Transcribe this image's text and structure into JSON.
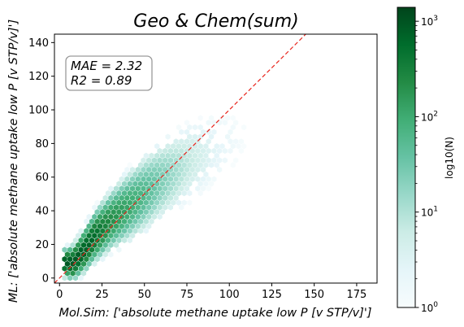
{
  "chart_data": {
    "type": "heatmap",
    "subtype": "hexbin",
    "title": "Geo & Chem(sum)",
    "xlabel": "Mol.Sim: ['absolute methane uptake low P [v STP/v]']",
    "ylabel": "ML: ['absolute methane uptake low P [v STP/v]']",
    "xlim": [
      -3,
      187
    ],
    "ylim": [
      -3,
      145
    ],
    "xticks": [
      0,
      25,
      50,
      75,
      100,
      125,
      150,
      175
    ],
    "yticks": [
      0,
      20,
      40,
      60,
      80,
      100,
      120,
      140
    ],
    "xtick_labels": [
      "0",
      "25",
      "50",
      "75",
      "100",
      "125",
      "150",
      "175"
    ],
    "ytick_labels": [
      "0",
      "20",
      "40",
      "60",
      "80",
      "100",
      "120",
      "140"
    ],
    "stats": [
      "MAE = 2.32",
      "R2 = 0.89"
    ],
    "reference_line": {
      "label": "y = x",
      "color": "#e8251c",
      "style": "dashed"
    },
    "colorbar": {
      "label": "log10(N)",
      "scale": "log",
      "range": [
        1,
        1400
      ],
      "tick_labels": [
        {
          "base": "10",
          "exp": "0",
          "value": 1
        },
        {
          "base": "10",
          "exp": "1",
          "value": 10
        },
        {
          "base": "10",
          "exp": "2",
          "value": 100
        },
        {
          "base": "10",
          "exp": "3",
          "value": 1000
        }
      ],
      "colormap": "BuGn"
    },
    "density_trend": [
      {
        "x": 8,
        "y": 9,
        "count": 900
      },
      {
        "x": 15,
        "y": 17,
        "count": 800
      },
      {
        "x": 20,
        "y": 24,
        "count": 600
      },
      {
        "x": 25,
        "y": 29,
        "count": 350
      },
      {
        "x": 30,
        "y": 34,
        "count": 220
      },
      {
        "x": 40,
        "y": 42,
        "count": 120
      },
      {
        "x": 50,
        "y": 50,
        "count": 60
      },
      {
        "x": 60,
        "y": 58,
        "count": 25
      },
      {
        "x": 75,
        "y": 68,
        "count": 8
      },
      {
        "x": 90,
        "y": 76,
        "count": 3
      },
      {
        "x": 110,
        "y": 85,
        "count": 1
      }
    ]
  }
}
